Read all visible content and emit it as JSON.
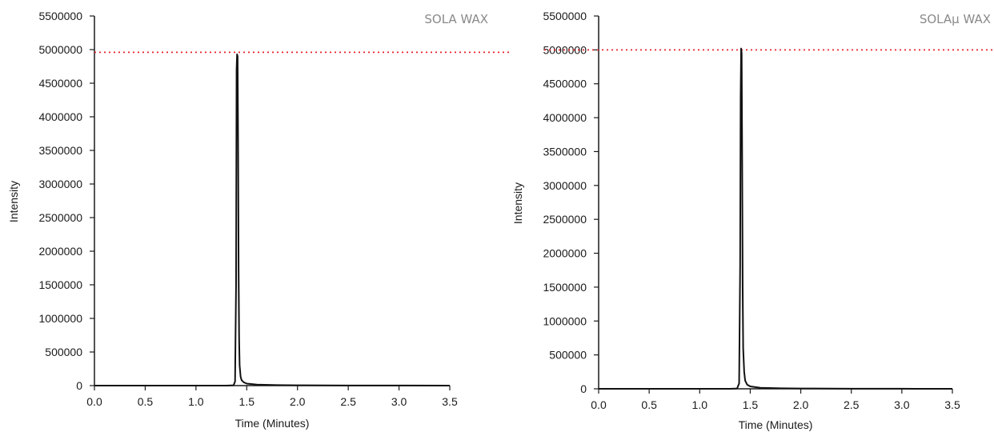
{
  "chart_data": [
    {
      "type": "line",
      "title": "SOLA WAX",
      "xlabel": "Time (Minutes)",
      "ylabel": "Intensity",
      "xlim": [
        0,
        3.5
      ],
      "ylim": [
        0,
        5500000
      ],
      "x_ticks": [
        0,
        0.5,
        1,
        1.5,
        2,
        2.5,
        3,
        3.5
      ],
      "x_tick_labels": [
        "0.0",
        "0.5",
        "1.0",
        "1.5",
        "2.0",
        "2.5",
        "3.0",
        "3.5"
      ],
      "y_ticks": [
        0,
        500000,
        1000000,
        1500000,
        2000000,
        2500000,
        3000000,
        3500000,
        4000000,
        4500000,
        5000000,
        5500000
      ],
      "y_tick_labels": [
        "0",
        "500000",
        "1000000",
        "1500000",
        "2000000",
        "2500000",
        "3000000",
        "3500000",
        "4000000",
        "4500000",
        "5000000",
        "5500000"
      ],
      "grid": false,
      "reference_line": {
        "y": 4960000,
        "style": "dotted",
        "color": "#e8202a"
      },
      "series": [
        {
          "color": "#111111",
          "x": [
            0,
            1.3,
            1.37,
            1.385,
            1.395,
            1.4,
            1.405,
            1.41,
            1.415,
            1.42,
            1.425,
            1.43,
            1.44,
            1.45,
            1.47,
            1.5,
            1.6,
            1.8,
            2.0,
            2.5,
            3.0,
            3.5
          ],
          "y": [
            0,
            0,
            5000,
            60000,
            1500000,
            4700000,
            4930000,
            4900000,
            3600000,
            1700000,
            700000,
            300000,
            130000,
            80000,
            50000,
            30000,
            15000,
            8000,
            5000,
            2000,
            1000,
            0
          ]
        }
      ]
    },
    {
      "type": "line",
      "title": "SOLAμ WAX",
      "xlabel": "Time (Minutes)",
      "ylabel": "Intensity",
      "xlim": [
        0,
        3.5
      ],
      "ylim": [
        0,
        5500000
      ],
      "x_ticks": [
        0,
        0.5,
        1,
        1.5,
        2,
        2.5,
        3,
        3.5
      ],
      "x_tick_labels": [
        "0.0",
        "0.5",
        "1.0",
        "1.5",
        "2.0",
        "2.5",
        "3.0",
        "3.5"
      ],
      "y_ticks": [
        0,
        500000,
        1000000,
        1500000,
        2000000,
        2500000,
        3000000,
        3500000,
        4000000,
        4500000,
        5000000,
        5500000
      ],
      "y_tick_labels": [
        "0",
        "500000",
        "1000000",
        "1500000",
        "2000000",
        "2500000",
        "3000000",
        "3500000",
        "4000000",
        "4500000",
        "5000000",
        "5500000"
      ],
      "grid": false,
      "reference_line": {
        "y": 5000000,
        "style": "dotted",
        "color": "#e8202a"
      },
      "series": [
        {
          "color": "#111111",
          "x": [
            0,
            1.3,
            1.37,
            1.39,
            1.4,
            1.405,
            1.41,
            1.415,
            1.42,
            1.425,
            1.43,
            1.44,
            1.45,
            1.47,
            1.5,
            1.6,
            1.8,
            2.0,
            2.5,
            3.0,
            3.5
          ],
          "y": [
            0,
            0,
            5000,
            80000,
            1800000,
            4300000,
            5020000,
            4950000,
            3400000,
            1500000,
            600000,
            250000,
            120000,
            60000,
            35000,
            15000,
            8000,
            5000,
            2000,
            1000,
            0
          ]
        }
      ]
    }
  ]
}
